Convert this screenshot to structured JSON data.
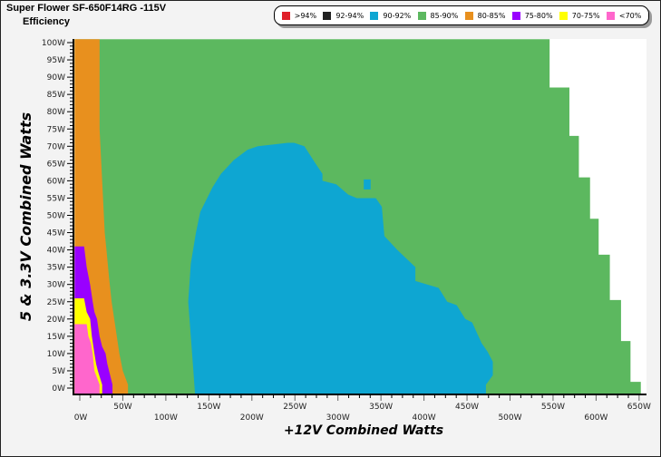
{
  "chart_data": {
    "type": "heatmap",
    "title": "Super Flower SF-650F14RG -115V",
    "subtitle": "Efficiency",
    "xlabel": "+12V Combined Watts",
    "ylabel": "5 & 3.3V Combined Watts",
    "xlim": [
      -6,
      660
    ],
    "ylim": [
      -2,
      101
    ],
    "x_ticks": [
      "0W",
      "50W",
      "100W",
      "150W",
      "200W",
      "250W",
      "300W",
      "350W",
      "400W",
      "450W",
      "500W",
      "550W",
      "600W",
      "650W"
    ],
    "y_ticks": [
      "0W",
      "5W",
      "10W",
      "15W",
      "20W",
      "25W",
      "30W",
      "35W",
      "40W",
      "45W",
      "50W",
      "55W",
      "60W",
      "65W",
      "70W",
      "75W",
      "80W",
      "85W",
      "90W",
      "95W",
      "100W"
    ],
    "legend": [
      {
        "label": ">94%",
        "color": "#e0202a"
      },
      {
        "label": "92-94%",
        "color": "#222222"
      },
      {
        "label": "90-92%",
        "color": "#0ea6d2"
      },
      {
        "label": "85-90%",
        "color": "#5cb85f"
      },
      {
        "label": "80-85%",
        "color": "#e8901e"
      },
      {
        "label": "75-80%",
        "color": "#9900ff"
      },
      {
        "label": "70-75%",
        "color": "#ffff00"
      },
      {
        "label": "<70%",
        "color": "#ff66cc"
      }
    ],
    "regions": [
      {
        "band": "85-90%",
        "color": "#5cb85f",
        "points": [
          [
            -6,
            -2
          ],
          [
            -6,
            101
          ],
          [
            546,
            101
          ],
          [
            546,
            87
          ],
          [
            569,
            87
          ],
          [
            569,
            73
          ],
          [
            580,
            73
          ],
          [
            580,
            61
          ],
          [
            593,
            61
          ],
          [
            593,
            49
          ],
          [
            603,
            49
          ],
          [
            603,
            38.6
          ],
          [
            616,
            38.6
          ],
          [
            616,
            25.5
          ],
          [
            629,
            25.5
          ],
          [
            629,
            13.6
          ],
          [
            640,
            13.6
          ],
          [
            640,
            1.8
          ],
          [
            652,
            1.8
          ],
          [
            652,
            -2
          ]
        ]
      },
      {
        "band": "90-92%",
        "color": "#0ea6d2",
        "points": [
          [
            134,
            -2
          ],
          [
            132,
            5
          ],
          [
            126,
            25
          ],
          [
            129,
            36
          ],
          [
            135,
            45
          ],
          [
            140,
            51
          ],
          [
            148,
            55
          ],
          [
            154,
            58
          ],
          [
            164,
            62
          ],
          [
            179,
            66
          ],
          [
            195,
            69
          ],
          [
            207,
            70
          ],
          [
            242,
            71
          ],
          [
            249,
            71
          ],
          [
            261,
            70
          ],
          [
            274,
            65
          ],
          [
            282,
            62
          ],
          [
            282,
            60
          ],
          [
            298,
            59
          ],
          [
            312,
            56
          ],
          [
            322,
            55
          ],
          [
            344,
            55
          ],
          [
            351,
            52.5
          ],
          [
            354,
            44
          ],
          [
            369,
            40
          ],
          [
            390,
            35
          ],
          [
            390,
            31
          ],
          [
            417,
            29
          ],
          [
            427,
            25
          ],
          [
            438,
            24
          ],
          [
            448,
            20
          ],
          [
            456,
            19
          ],
          [
            467,
            13
          ],
          [
            474,
            10.5
          ],
          [
            480,
            7.6
          ],
          [
            480,
            3.7
          ],
          [
            472,
            1
          ],
          [
            472,
            -2
          ]
        ]
      },
      {
        "band": "90-92%",
        "color": "#0ea6d2",
        "points": [
          [
            330,
            57.5
          ],
          [
            330,
            60.4
          ],
          [
            338,
            60.4
          ],
          [
            338,
            57.5
          ]
        ]
      },
      {
        "band": "80-85%",
        "color": "#e8901e",
        "points": [
          [
            -6,
            -2
          ],
          [
            -6,
            101
          ],
          [
            23,
            101
          ],
          [
            23,
            75
          ],
          [
            26,
            60
          ],
          [
            29,
            45
          ],
          [
            31,
            40
          ],
          [
            34,
            32
          ],
          [
            37,
            25
          ],
          [
            40,
            20
          ],
          [
            43,
            15
          ],
          [
            46,
            10
          ],
          [
            50,
            5
          ],
          [
            56,
            1
          ],
          [
            56,
            -2
          ]
        ]
      },
      {
        "band": "75-80%",
        "color": "#9900ff",
        "points": [
          [
            -6,
            -2
          ],
          [
            -6,
            41
          ],
          [
            5,
            41
          ],
          [
            8,
            35
          ],
          [
            12,
            30
          ],
          [
            15,
            25
          ],
          [
            17,
            22
          ],
          [
            20,
            20
          ],
          [
            23,
            15
          ],
          [
            26,
            12
          ],
          [
            30,
            10
          ],
          [
            32,
            7
          ],
          [
            34,
            5
          ],
          [
            38,
            1
          ],
          [
            38,
            -2
          ]
        ]
      },
      {
        "band": "70-75%",
        "color": "#ffff00",
        "points": [
          [
            -6,
            -2
          ],
          [
            -6,
            26
          ],
          [
            5,
            26
          ],
          [
            8,
            22
          ],
          [
            12,
            20
          ],
          [
            14,
            15
          ],
          [
            17,
            10
          ],
          [
            19,
            7
          ],
          [
            21,
            5
          ],
          [
            26,
            1
          ],
          [
            26,
            -2
          ]
        ]
      },
      {
        "band": "<70%",
        "color": "#ff66cc",
        "points": [
          [
            -6,
            -2
          ],
          [
            -6,
            18.5
          ],
          [
            8,
            18.5
          ],
          [
            10,
            15
          ],
          [
            13,
            13
          ],
          [
            15,
            10
          ],
          [
            17,
            5
          ],
          [
            20,
            3
          ],
          [
            23,
            1
          ],
          [
            23,
            -2
          ]
        ]
      }
    ]
  }
}
